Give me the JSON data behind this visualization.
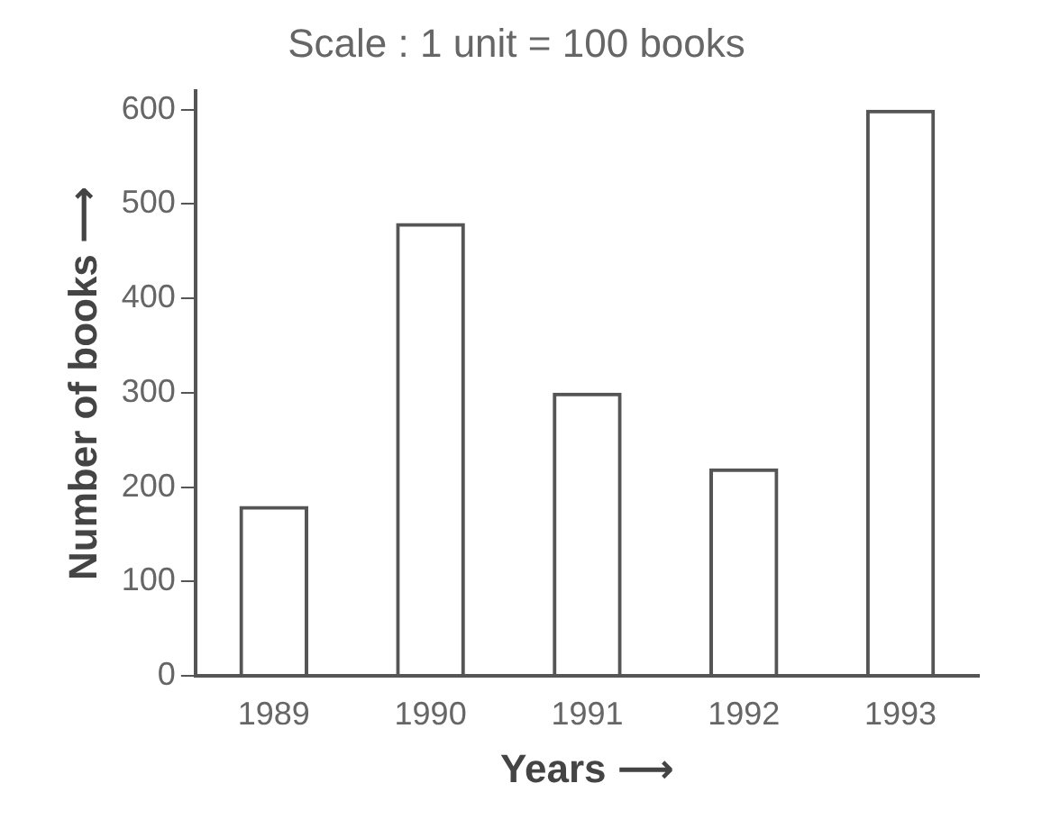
{
  "chart_data": {
    "type": "bar",
    "title": "Scale : 1 unit = 100 books",
    "xlabel": "Years ⟶",
    "ylabel": "Number of books ⟶",
    "categories": [
      "1989",
      "1990",
      "1991",
      "1992",
      "1993"
    ],
    "values": [
      180,
      480,
      300,
      220,
      600
    ],
    "color": "#555555",
    "ylim": [
      0,
      620
    ],
    "yticks": [
      0,
      100,
      200,
      300,
      400,
      500,
      600
    ],
    "grid": false,
    "legend": false
  }
}
